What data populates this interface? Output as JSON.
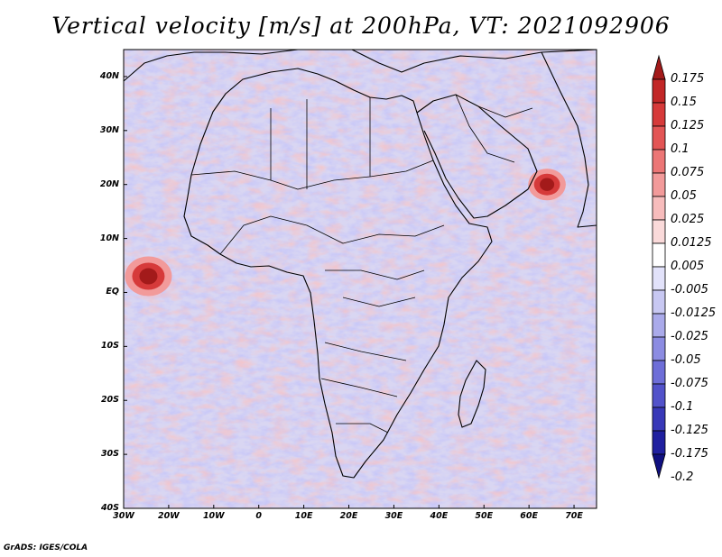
{
  "title": "Vertical velocity [m/s] at 200hPa, VT: 2021092906",
  "credit": "GrADS: IGES/COLA",
  "map": {
    "lon_range": [
      -30,
      75
    ],
    "lat_range": [
      -40,
      45
    ],
    "lat_ticks": [
      "40N",
      "30N",
      "20N",
      "10N",
      "EQ",
      "10S",
      "20S",
      "30S",
      "40S"
    ],
    "lon_ticks": [
      "30W",
      "20W",
      "10W",
      "0",
      "10E",
      "20E",
      "30E",
      "40E",
      "50E",
      "60E",
      "70E"
    ]
  },
  "colorbar": {
    "labels": [
      "0.175",
      "0.15",
      "0.125",
      "0.1",
      "0.075",
      "0.05",
      "0.025",
      "0.0125",
      "0.005",
      "-0.005",
      "-0.0125",
      "-0.025",
      "-0.05",
      "-0.075",
      "-0.1",
      "-0.125",
      "-0.175",
      "-0.2"
    ],
    "colors": [
      "#a31a1a",
      "#c22727",
      "#d63a3a",
      "#e35555",
      "#ec7676",
      "#f29a9a",
      "#f7bcbc",
      "#fadada",
      "#ffffff",
      "#e2e2fa",
      "#c8c8f2",
      "#aaaaea",
      "#8c8ce2",
      "#6e6ed8",
      "#5252ca",
      "#3838b8",
      "#2020a0",
      "#101080"
    ]
  },
  "features": {
    "cyclone_colors": [
      "#a31a1a",
      "#d63a3a",
      "#f29a9a"
    ]
  }
}
